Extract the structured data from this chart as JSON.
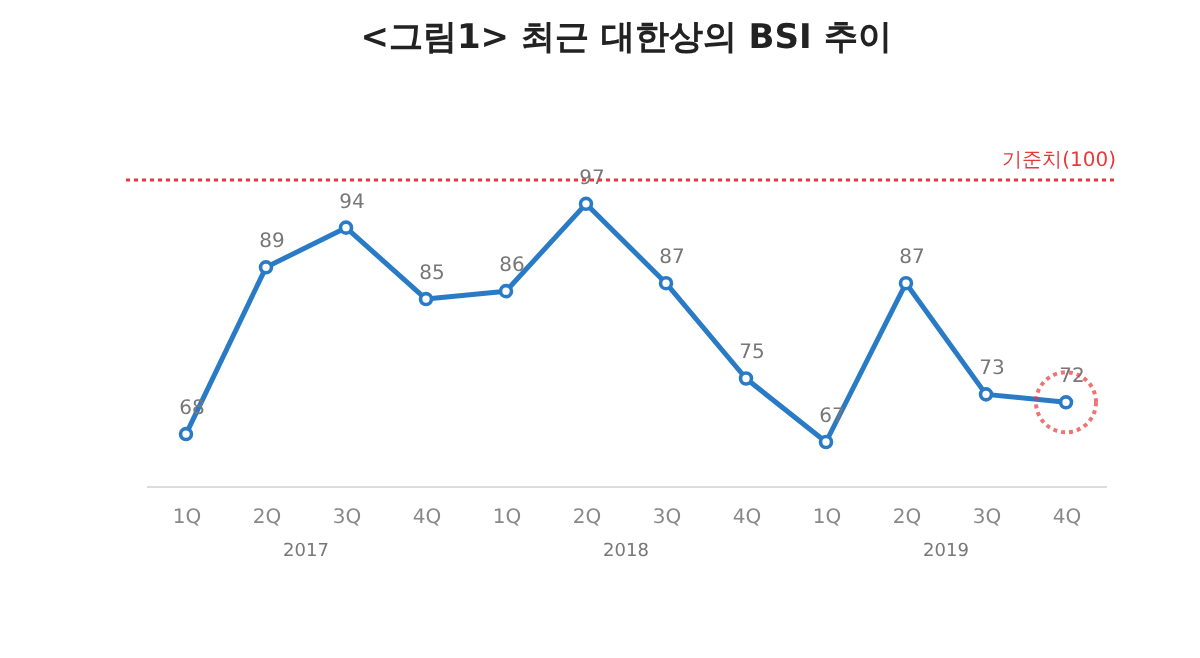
{
  "chart_data": {
    "type": "line",
    "title": "<그림1> 최근 대한상의 BSI 추이",
    "categories": [
      "1Q",
      "2Q",
      "3Q",
      "4Q",
      "1Q",
      "2Q",
      "3Q",
      "4Q",
      "1Q",
      "2Q",
      "3Q",
      "4Q"
    ],
    "series": [
      {
        "color": "#2a7bc6",
        "values": [
          68,
          89,
          94,
          85,
          86,
          97,
          87,
          75,
          67,
          87,
          73,
          72
        ]
      }
    ],
    "annotations": [
      "2017",
      "2018",
      "2019"
    ],
    "ref_lines": [
      {
        "axis": "y",
        "value": 100,
        "label": "기준치(100)",
        "color": "#e8393a",
        "line_style": "dotted"
      }
    ],
    "data_labels": true,
    "marker": "circle",
    "line_style": "solid"
  }
}
